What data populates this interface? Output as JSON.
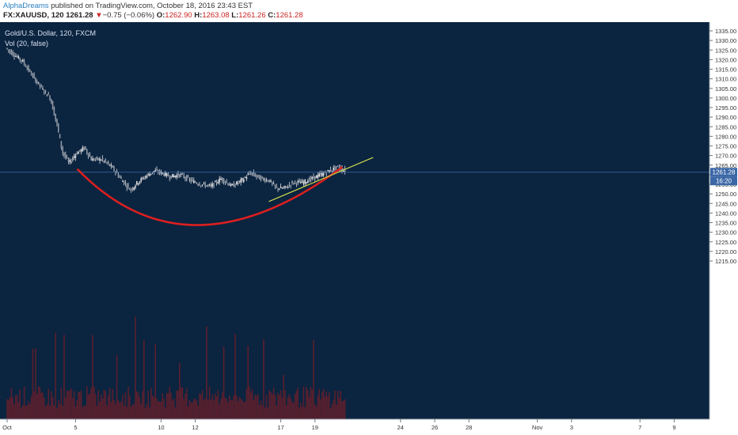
{
  "header": {
    "author": "AlphaDreams",
    "published": "published on TradingView.com, October 18, 2016 23:43 EST",
    "symbol": "FX:XAUUSD, 120",
    "last": "1261.28",
    "change_arrow": "▼",
    "change": "−0.75 (−0.06%)",
    "o_label": "O:",
    "o_value": "1262.90",
    "h_label": "H:",
    "h_value": "1263.08",
    "l_label": "L:",
    "l_value": "1261.26",
    "c_label": "C:",
    "c_value": "1261.28"
  },
  "legend": {
    "series_title": "Gold/U.S. Dollar, 120, FXCM",
    "volume_title": "Vol (20, false)"
  },
  "colors": {
    "background": "#0b2440",
    "candles": "#d9d9d9",
    "curve": "#dd1f1f",
    "trendline": "#cfd94a",
    "price_line": "#3d6aa8",
    "price_label": "#3b67a6",
    "volume": "#5a1f2d"
  },
  "chart_data": {
    "type": "candlestick",
    "title": "Gold/U.S. Dollar, 120, FXCM",
    "y_axis": {
      "min": 1215,
      "max": 1335,
      "step": 5,
      "ticks": [
        "1335.00",
        "1330.00",
        "1325.00",
        "1320.00",
        "1315.00",
        "1310.00",
        "1305.00",
        "1300.00",
        "1295.00",
        "1290.00",
        "1285.00",
        "1280.00",
        "1275.00",
        "1270.00",
        "1265.00",
        "1260.00",
        "1255.00",
        "1250.00",
        "1245.00",
        "1240.00",
        "1235.00",
        "1230.00",
        "1225.00",
        "1220.00",
        "1215.00"
      ]
    },
    "x_axis": {
      "labels": [
        "Oct",
        "5",
        "10",
        "12",
        "17",
        "19",
        "24",
        "26",
        "28",
        "Nov",
        "3",
        "7",
        "9"
      ],
      "day_index": [
        0,
        4,
        9,
        11,
        16,
        18,
        23,
        25,
        27,
        31,
        33,
        37,
        39
      ]
    },
    "price_series": [
      [
        0,
        1326
      ],
      [
        1,
        1319
      ],
      [
        1.6,
        1311
      ],
      [
        2.2,
        1304
      ],
      [
        2.6,
        1300
      ],
      [
        3.0,
        1286
      ],
      [
        3.3,
        1272
      ],
      [
        3.7,
        1266
      ],
      [
        4.1,
        1271
      ],
      [
        4.6,
        1274
      ],
      [
        5.0,
        1268
      ],
      [
        5.6,
        1268
      ],
      [
        6.2,
        1264
      ],
      [
        6.8,
        1257
      ],
      [
        7.3,
        1252
      ],
      [
        7.7,
        1256
      ],
      [
        8.3,
        1260
      ],
      [
        8.7,
        1262
      ],
      [
        9.1,
        1261
      ],
      [
        9.6,
        1259
      ],
      [
        10.2,
        1260
      ],
      [
        10.8,
        1257
      ],
      [
        11.4,
        1255
      ],
      [
        12.0,
        1254
      ],
      [
        12.6,
        1258
      ],
      [
        13.2,
        1254
      ],
      [
        13.8,
        1257
      ],
      [
        14.3,
        1261
      ],
      [
        14.9,
        1258
      ],
      [
        15.4,
        1257
      ],
      [
        15.8,
        1253
      ],
      [
        16.3,
        1253
      ],
      [
        16.8,
        1256
      ],
      [
        17.4,
        1256
      ],
      [
        17.9,
        1258
      ],
      [
        18.4,
        1260
      ],
      [
        18.9,
        1262
      ],
      [
        19.4,
        1264
      ],
      [
        19.8,
        1262
      ]
    ],
    "current_price": "1261.28",
    "countdown": "16:20",
    "annotations": {
      "rounded_bottom": {
        "start": [
          4.1,
          1263
        ],
        "control": [
          10.5,
          1204
        ],
        "end": [
          19.6,
          1264
        ]
      },
      "trendline": {
        "start": [
          15.3,
          1246
        ],
        "end": [
          21.4,
          1269
        ]
      }
    }
  }
}
